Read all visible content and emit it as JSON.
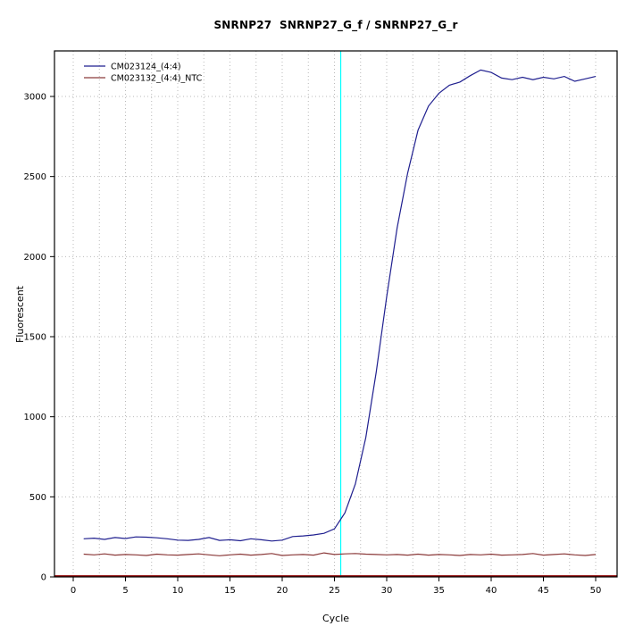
{
  "chart_data": {
    "type": "line",
    "title": "SNRNP27  SNRNP27_G_f / SNRNP27_G_r",
    "xlabel": "Cycle",
    "ylabel": "Fluorescent",
    "xlim": [
      0,
      50
    ],
    "ylim": [
      0,
      3280
    ],
    "x_ticks": [
      0,
      5,
      10,
      15,
      20,
      25,
      30,
      35,
      40,
      45,
      50
    ],
    "y_ticks": [
      0,
      500,
      1000,
      1500,
      2000,
      2500,
      3000
    ],
    "grid": {
      "on": true,
      "style": "dotted",
      "color": "#b9b9b9",
      "x_step": 2.5,
      "y_step": 500
    },
    "threshold_line": {
      "orientation": "vertical",
      "x": 25.6,
      "color": "#00ffff"
    },
    "zero_line": {
      "y": 0,
      "color": "#8b0000"
    },
    "legend_position": "top-left",
    "x": [
      1,
      2,
      3,
      4,
      5,
      6,
      7,
      8,
      9,
      10,
      11,
      12,
      13,
      14,
      15,
      16,
      17,
      18,
      19,
      20,
      21,
      22,
      23,
      24,
      25,
      26,
      27,
      28,
      29,
      30,
      31,
      32,
      33,
      34,
      35,
      36,
      37,
      38,
      39,
      40,
      41,
      42,
      43,
      44,
      45,
      46,
      47,
      48,
      49,
      50
    ],
    "series": [
      {
        "name": "CM023124_(4:4)",
        "color": "#1f1f8f",
        "values": [
          238,
          242,
          234,
          246,
          240,
          250,
          248,
          244,
          238,
          230,
          228,
          234,
          246,
          228,
          232,
          226,
          238,
          232,
          224,
          230,
          252,
          256,
          262,
          272,
          300,
          400,
          580,
          870,
          1280,
          1750,
          2180,
          2520,
          2790,
          2940,
          3020,
          3070,
          3090,
          3130,
          3165,
          3150,
          3115,
          3105,
          3120,
          3105,
          3120,
          3110,
          3125,
          3095,
          3110,
          3125
        ]
      },
      {
        "name": "CM023132_(4:4)_NTC",
        "color": "#8b3a3a",
        "values": [
          142,
          138,
          144,
          136,
          140,
          138,
          134,
          142,
          138,
          136,
          140,
          144,
          138,
          132,
          138,
          142,
          136,
          140,
          146,
          134,
          138,
          140,
          136,
          150,
          140,
          144,
          146,
          142,
          140,
          138,
          140,
          136,
          142,
          136,
          140,
          138,
          134,
          140,
          138,
          142,
          136,
          138,
          140,
          146,
          136,
          140,
          144,
          138,
          134,
          140
        ]
      }
    ]
  }
}
